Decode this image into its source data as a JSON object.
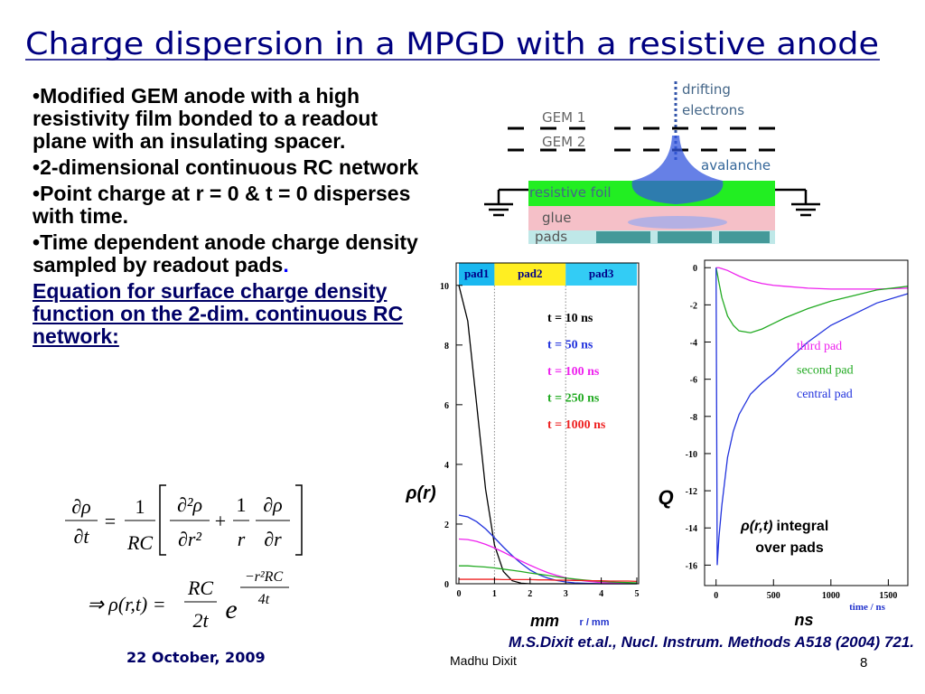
{
  "title": "Charge dispersion in a MPGD with a resistive anode",
  "body": {
    "bullets": [
      "Modified GEM anode with a high resistivity film bonded to a readout plane with an insulating spacer.",
      "2-dimensional continuous RC network",
      "Point charge at r = 0 & t = 0 disperses with time.",
      "Time dependent anode charge density sampled by readout pads"
    ],
    "bullet_end": ".",
    "emphasis": "Equation for surface charge density function on the 2-dim. continuous RC network:"
  },
  "equation_1": {
    "lhs": [
      "∂ρ",
      "∂t"
    ],
    "eq": "=",
    "f1": [
      "1",
      "RC"
    ],
    "f2": [
      "∂²ρ",
      "∂r²"
    ],
    "plus": "+",
    "f3": [
      "1",
      "r"
    ],
    "f4": [
      "∂ρ",
      "∂r"
    ]
  },
  "equation_2": {
    "lhs": "⇒ ρ(r,t) =",
    "f1": [
      "RC",
      "2t"
    ],
    "base": "e",
    "exponent": [
      "−r²RC",
      "4t"
    ]
  },
  "diagram": {
    "drifting": [
      "drifting",
      "electrons"
    ],
    "gem1": "GEM 1",
    "gem2": "GEM 2",
    "avalanche": "avalanche",
    "foil": "resistive foil",
    "glue": "glue",
    "pads": "pads"
  },
  "chart_data": [
    {
      "type": "line",
      "ylabel": "ρ(r)",
      "xlabel": "r / mm",
      "x_caption": "mm",
      "pads": [
        "pad1",
        "pad2",
        "pad3"
      ],
      "pad_edges": [
        0,
        1,
        3,
        5
      ],
      "pad_colors": [
        "#1ab8f0",
        "#ffee22",
        "#33ccf5"
      ],
      "xlim": [
        0,
        5
      ],
      "ylim": [
        0,
        10.75
      ],
      "xticks": [
        0,
        1,
        2,
        3,
        4,
        5
      ],
      "yticks": [
        0,
        2,
        4,
        6,
        8,
        10
      ],
      "x": [
        0,
        0.25,
        0.5,
        0.75,
        1,
        1.25,
        1.5,
        1.75,
        2,
        2.25,
        2.5,
        2.75,
        3,
        3.25,
        3.5,
        3.75,
        4,
        4.25,
        4.5,
        4.75,
        5
      ],
      "series": [
        {
          "name": "t = 10 ns",
          "color": "#000000",
          "values": [
            10,
            8.8,
            6,
            3.17,
            1.3,
            0.41,
            0.1,
            0.02,
            0,
            0,
            0,
            0,
            0,
            0,
            0,
            0,
            0,
            0,
            0,
            0,
            0
          ]
        },
        {
          "name": "t = 50 ns",
          "color": "#2233dd",
          "values": [
            2.3,
            2.24,
            2.08,
            1.84,
            1.54,
            1.23,
            0.94,
            0.68,
            0.46,
            0.3,
            0.19,
            0.11,
            0.06,
            0.03,
            0.02,
            0.01,
            0,
            0,
            0,
            0,
            0
          ]
        },
        {
          "name": "t = 100 ns",
          "color": "#ee22ee",
          "values": [
            1.5,
            1.48,
            1.42,
            1.32,
            1.2,
            1.06,
            0.91,
            0.76,
            0.62,
            0.49,
            0.37,
            0.28,
            0.2,
            0.14,
            0.1,
            0.07,
            0.04,
            0.03,
            0.02,
            0.01,
            0.01
          ]
        },
        {
          "name": "t = 250 ns",
          "color": "#22aa22",
          "values": [
            0.6,
            0.6,
            0.58,
            0.56,
            0.53,
            0.49,
            0.45,
            0.41,
            0.36,
            0.32,
            0.28,
            0.23,
            0.19,
            0.16,
            0.13,
            0.1,
            0.08,
            0.06,
            0.05,
            0.04,
            0.03
          ]
        },
        {
          "name": "t = 1000 ns",
          "color": "#ee2222",
          "values": [
            0.15,
            0.15,
            0.15,
            0.15,
            0.15,
            0.14,
            0.14,
            0.14,
            0.14,
            0.13,
            0.13,
            0.12,
            0.12,
            0.11,
            0.11,
            0.1,
            0.1,
            0.09,
            0.09,
            0.09,
            0.08
          ]
        }
      ]
    },
    {
      "type": "line",
      "ylabel": "Q",
      "xlabel": "time / ns",
      "x_caption": "ns",
      "annotation": [
        "ρ(r,t)",
        "integral",
        "over pads"
      ],
      "xlim": [
        -100,
        1670
      ],
      "ylim": [
        -17.1,
        0.4
      ],
      "xticks": [
        0,
        500,
        1000,
        1500
      ],
      "yticks": [
        0,
        -2,
        -4,
        -6,
        -8,
        -10,
        -12,
        -14,
        -16
      ],
      "x": [
        0,
        10,
        25,
        50,
        100,
        150,
        200,
        300,
        400,
        500,
        600,
        800,
        1000,
        1200,
        1400,
        1670
      ],
      "series": [
        {
          "name": "third pad",
          "color": "#ee22ee",
          "values": [
            0,
            0,
            0,
            -0.05,
            -0.15,
            -0.3,
            -0.45,
            -0.7,
            -0.85,
            -0.95,
            -1,
            -1.1,
            -1.15,
            -1.15,
            -1.15,
            -1.1
          ]
        },
        {
          "name": "second pad",
          "color": "#22aa22",
          "values": [
            0,
            -0.3,
            -0.8,
            -1.6,
            -2.6,
            -3.1,
            -3.4,
            -3.5,
            -3.3,
            -3,
            -2.7,
            -2.2,
            -1.8,
            -1.5,
            -1.2,
            -1
          ]
        },
        {
          "name": "central pad",
          "color": "#2233dd",
          "values": [
            0,
            -16,
            -14.5,
            -12.8,
            -10.2,
            -8.8,
            -7.9,
            -6.8,
            -6.2,
            -5.7,
            -5.1,
            -4,
            -3.1,
            -2.5,
            -1.9,
            -1.4
          ]
        }
      ]
    }
  ],
  "footer": {
    "date": "22 October, 2009",
    "author": "Madhu Dixit",
    "page": 8,
    "citation": "M.S.Dixit et.al., Nucl. Instrum. Methods A518 (2004) 721."
  }
}
